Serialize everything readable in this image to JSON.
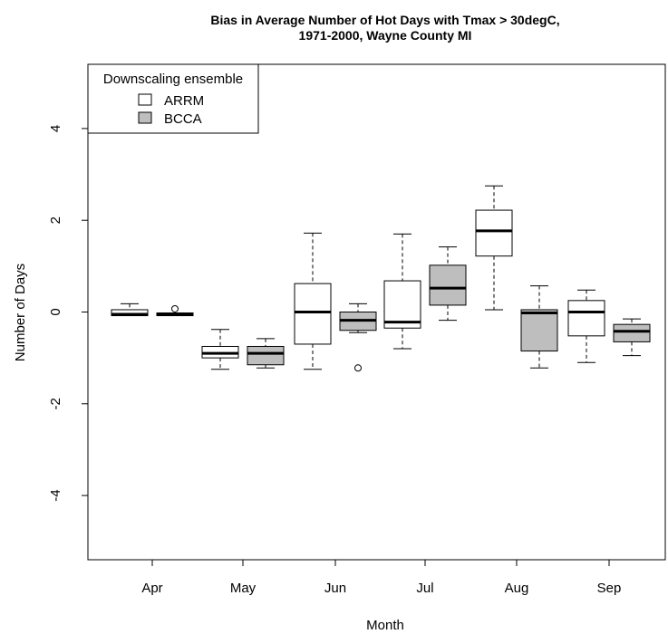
{
  "chart_data": {
    "type": "boxplot",
    "title": "Bias in Average Number of Hot Days with Tmax > 30degC,",
    "subtitle": "1971-2000, Wayne County MI",
    "xlabel": "Month",
    "ylabel": "Number of Days",
    "ylim": [
      -5.4,
      5.4
    ],
    "yticks": [
      -4,
      -2,
      0,
      2,
      4
    ],
    "categories": [
      "Apr",
      "May",
      "Jun",
      "Jul",
      "Aug",
      "Sep"
    ],
    "legend": {
      "title": "Downscaling ensemble",
      "placement": "top-left",
      "entries": [
        {
          "label": "ARRM",
          "color": "#ffffff"
        },
        {
          "label": "BCCA",
          "color": "#bebebe"
        }
      ]
    },
    "series": [
      {
        "name": "ARRM",
        "color": "#ffffff",
        "boxes": [
          {
            "min": -0.08,
            "q1": -0.08,
            "median": -0.05,
            "q3": 0.05,
            "max": 0.18,
            "outliers": []
          },
          {
            "min": -1.25,
            "q1": -1.0,
            "median": -0.9,
            "q3": -0.75,
            "max": -0.38,
            "outliers": []
          },
          {
            "min": -1.25,
            "q1": -0.7,
            "median": 0.0,
            "q3": 0.62,
            "max": 1.72,
            "outliers": []
          },
          {
            "min": -0.8,
            "q1": -0.35,
            "median": -0.22,
            "q3": 0.68,
            "max": 1.7,
            "outliers": []
          },
          {
            "min": 0.05,
            "q1": 1.22,
            "median": 1.77,
            "q3": 2.22,
            "max": 2.75,
            "outliers": []
          },
          {
            "min": -1.1,
            "q1": -0.52,
            "median": 0.0,
            "q3": 0.25,
            "max": 0.48,
            "outliers": []
          }
        ]
      },
      {
        "name": "BCCA",
        "color": "#bebebe",
        "boxes": [
          {
            "min": -0.08,
            "q1": -0.08,
            "median": -0.05,
            "q3": -0.02,
            "max": -0.02,
            "outliers": [
              0.07
            ]
          },
          {
            "min": -1.22,
            "q1": -1.15,
            "median": -0.9,
            "q3": -0.75,
            "max": -0.58,
            "outliers": []
          },
          {
            "min": -0.45,
            "q1": -0.4,
            "median": -0.18,
            "q3": 0.0,
            "max": 0.18,
            "outliers": [
              -1.22
            ]
          },
          {
            "min": -0.18,
            "q1": 0.15,
            "median": 0.52,
            "q3": 1.02,
            "max": 1.42,
            "outliers": []
          },
          {
            "min": -1.22,
            "q1": -0.85,
            "median": -0.02,
            "q3": 0.05,
            "max": 0.57,
            "outliers": []
          },
          {
            "min": -0.95,
            "q1": -0.65,
            "median": -0.42,
            "q3": -0.27,
            "max": -0.15,
            "outliers": []
          }
        ]
      }
    ]
  }
}
